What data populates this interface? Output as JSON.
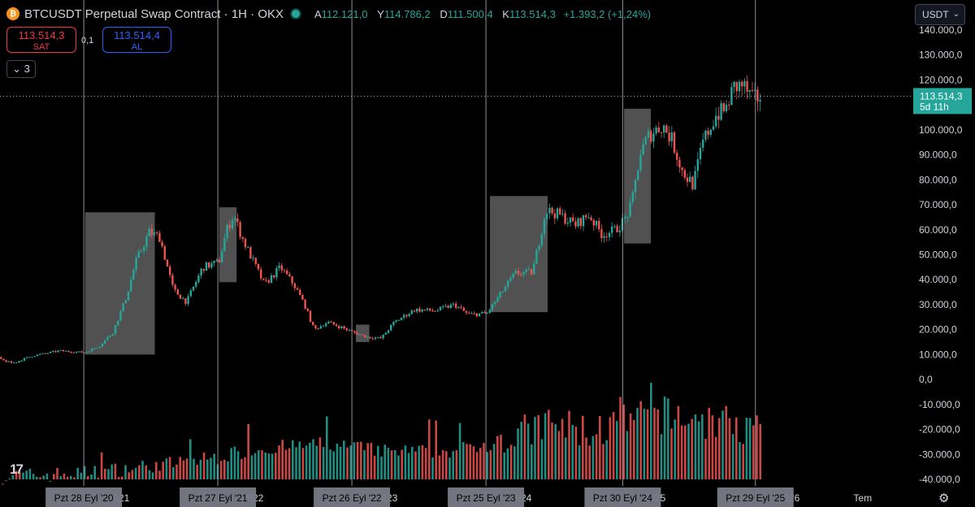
{
  "header": {
    "title": "BTCUSDT Perpetual Swap Contract · 1H · OKX",
    "ohlc": [
      {
        "key": "A",
        "value": "112.121,0"
      },
      {
        "key": "Y",
        "value": "114.786,2"
      },
      {
        "key": "D",
        "value": "111.500,4"
      },
      {
        "key": "K",
        "value": "113.514,3"
      }
    ],
    "change": "+1.393,2 (+1,24%)"
  },
  "trade": {
    "sell_price": "113.514,3",
    "sell_label": "SAT",
    "spread": "0,1",
    "buy_price": "113.514,4",
    "buy_label": "AL"
  },
  "indicators_count": "3",
  "currency": "USDT",
  "colors": {
    "up": "#26a69a",
    "down": "#ef5350",
    "price_tag": "#26a69a",
    "highlight_box": "#5f5f5f",
    "vertical_line": "#b2b5be"
  },
  "chart_data": {
    "type": "candlestick",
    "price_axis": {
      "ylim": [
        -40000,
        140000
      ],
      "ticks": [
        "140.000,0",
        "130.000,0",
        "120.000,0",
        "110.000,0",
        "100.000,0",
        "90.000,0",
        "80.000,0",
        "70.000,0",
        "60.000,0",
        "50.000,0",
        "40.000,0",
        "30.000,0",
        "20.000,0",
        "10.000,0",
        "0,0",
        "-10.000,0",
        "-20.000,0",
        "-30.000,0",
        "-40.000,0"
      ],
      "tick_values": [
        140000,
        130000,
        120000,
        110000,
        100000,
        90000,
        80000,
        70000,
        60000,
        50000,
        40000,
        30000,
        20000,
        10000,
        0,
        -10000,
        -20000,
        -30000,
        -40000
      ]
    },
    "last_price": {
      "label": "113.514,3",
      "countdown": "5d 11h",
      "value": 113514.3
    },
    "time_axis": {
      "year_labels": [
        "2021",
        "2022",
        "2023",
        "2024",
        "2025",
        "2026",
        "Tem"
      ],
      "year_positions": [
        2021.0,
        2022.0,
        2023.0,
        2024.0,
        2025.0,
        2026.0,
        2026.55
      ]
    },
    "cycle_markers": [
      {
        "label": "Pzt 28 Eyl '20",
        "t": 2020.74
      },
      {
        "label": "Pzt 27 Eyl '21",
        "t": 2021.74
      },
      {
        "label": "Pzt 26 Eyl '22",
        "t": 2022.74
      },
      {
        "label": "Pzt 25 Eyl '23",
        "t": 2023.74
      },
      {
        "label": "Pzt 30 Eyl '24",
        "t": 2024.76
      },
      {
        "label": "Pzt 29 Eyl '25",
        "t": 2025.75
      }
    ],
    "highlight_zones": [
      {
        "t0": 2020.75,
        "t1": 2021.27,
        "y0": 10000,
        "y1": 67000
      },
      {
        "t0": 2021.75,
        "t1": 2021.88,
        "y0": 39000,
        "y1": 69000
      },
      {
        "t0": 2022.77,
        "t1": 2022.87,
        "y0": 15000,
        "y1": 22000
      },
      {
        "t0": 2023.77,
        "t1": 2024.2,
        "y0": 27000,
        "y1": 73500
      },
      {
        "t0": 2024.77,
        "t1": 2024.97,
        "y0": 54500,
        "y1": 108500
      }
    ],
    "price_path": [
      [
        2020.05,
        9000
      ],
      [
        2020.2,
        6500
      ],
      [
        2020.35,
        9500
      ],
      [
        2020.55,
        11500
      ],
      [
        2020.74,
        10800
      ],
      [
        2020.85,
        13500
      ],
      [
        2020.95,
        19000
      ],
      [
        2021.05,
        33000
      ],
      [
        2021.12,
        47000
      ],
      [
        2021.22,
        59000
      ],
      [
        2021.3,
        57000
      ],
      [
        2021.4,
        36000
      ],
      [
        2021.5,
        31000
      ],
      [
        2021.62,
        45000
      ],
      [
        2021.74,
        47000
      ],
      [
        2021.8,
        60000
      ],
      [
        2021.85,
        66000
      ],
      [
        2021.92,
        56000
      ],
      [
        2022.0,
        47000
      ],
      [
        2022.08,
        38000
      ],
      [
        2022.2,
        45000
      ],
      [
        2022.3,
        38000
      ],
      [
        2022.38,
        30000
      ],
      [
        2022.45,
        20000
      ],
      [
        2022.55,
        23000
      ],
      [
        2022.65,
        21000
      ],
      [
        2022.74,
        19000
      ],
      [
        2022.85,
        17000
      ],
      [
        2022.95,
        16500
      ],
      [
        2023.05,
        23000
      ],
      [
        2023.2,
        28000
      ],
      [
        2023.35,
        27500
      ],
      [
        2023.5,
        30000
      ],
      [
        2023.6,
        26000
      ],
      [
        2023.74,
        26500
      ],
      [
        2023.85,
        35000
      ],
      [
        2023.95,
        42500
      ],
      [
        2024.08,
        43000
      ],
      [
        2024.18,
        68000
      ],
      [
        2024.28,
        66000
      ],
      [
        2024.4,
        62000
      ],
      [
        2024.5,
        66000
      ],
      [
        2024.6,
        58000
      ],
      [
        2024.7,
        60000
      ],
      [
        2024.76,
        63500
      ],
      [
        2024.82,
        70000
      ],
      [
        2024.88,
        90000
      ],
      [
        2024.95,
        98000
      ],
      [
        2025.05,
        102000
      ],
      [
        2025.12,
        96000
      ],
      [
        2025.2,
        83000
      ],
      [
        2025.28,
        78000
      ],
      [
        2025.35,
        95000
      ],
      [
        2025.45,
        106000
      ],
      [
        2025.52,
        108000
      ],
      [
        2025.58,
        117000
      ],
      [
        2025.65,
        118000
      ],
      [
        2025.72,
        112000
      ],
      [
        2025.78,
        113514
      ]
    ],
    "volume_path": [
      [
        2020.0,
        -39000
      ],
      [
        2020.7,
        -37500
      ],
      [
        2021.0,
        -36000
      ],
      [
        2021.5,
        -33000
      ],
      [
        2021.74,
        -31000
      ],
      [
        2022.0,
        -28000
      ],
      [
        2022.5,
        -26000
      ],
      [
        2022.74,
        -27000
      ],
      [
        2023.0,
        -29000
      ],
      [
        2023.5,
        -28500
      ],
      [
        2023.74,
        -26000
      ],
      [
        2024.0,
        -22000
      ],
      [
        2024.2,
        -18000
      ],
      [
        2024.5,
        -21000
      ],
      [
        2024.76,
        -18000
      ],
      [
        2025.0,
        -14000
      ],
      [
        2025.3,
        -16000
      ],
      [
        2025.6,
        -18500
      ],
      [
        2025.78,
        -21000
      ]
    ]
  }
}
